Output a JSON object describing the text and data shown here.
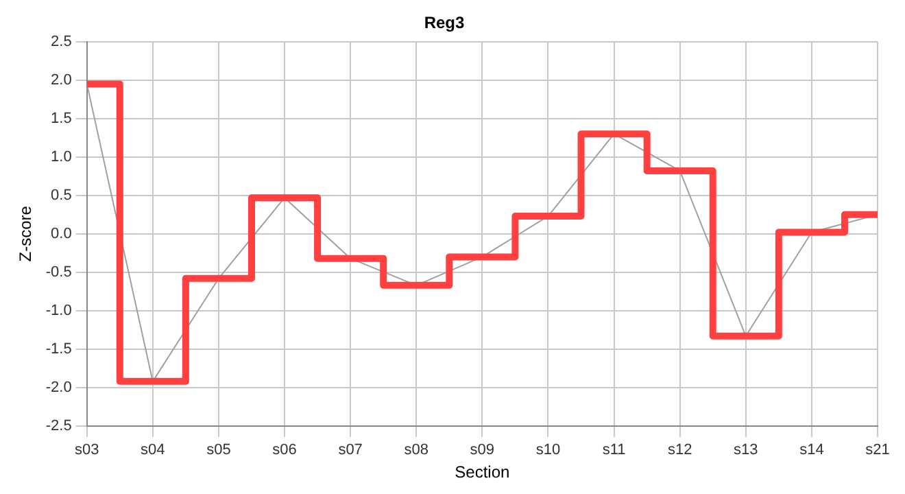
{
  "chart_data": {
    "type": "step",
    "title": "Reg3",
    "xlabel": "Section",
    "ylabel": "Z-score",
    "categories": [
      "s03",
      "s04",
      "s05",
      "s06",
      "s07",
      "s08",
      "s09",
      "s10",
      "s11",
      "s12",
      "s13",
      "s14",
      "s21"
    ],
    "series": [
      {
        "type": "line",
        "color": "#a0a0a0",
        "values": [
          1.95,
          -1.92,
          -0.58,
          0.47,
          -0.32,
          -0.67,
          -0.3,
          0.23,
          1.3,
          0.82,
          -1.33,
          0.02,
          0.25
        ]
      },
      {
        "type": "step",
        "color": "#ff4040",
        "values": [
          1.95,
          -1.92,
          -0.58,
          0.47,
          -0.32,
          -0.67,
          -0.3,
          0.23,
          1.3,
          0.82,
          -1.33,
          0.02,
          0.25
        ]
      }
    ],
    "ylim": [
      -2.5,
      2.5
    ],
    "yticks": [
      -2.5,
      {
        "value": -2,
        "label": "-2.0"
      },
      -1.5,
      {
        "value": -1,
        "label": "-1.0"
      },
      -0.5,
      {
        "value": 0,
        "label": "0.0"
      },
      0.5,
      {
        "value": 1,
        "label": "1.0"
      },
      1.5,
      {
        "value": 2,
        "label": "2.0"
      },
      2.5
    ],
    "grid": true,
    "legend": false,
    "marker": "none"
  }
}
